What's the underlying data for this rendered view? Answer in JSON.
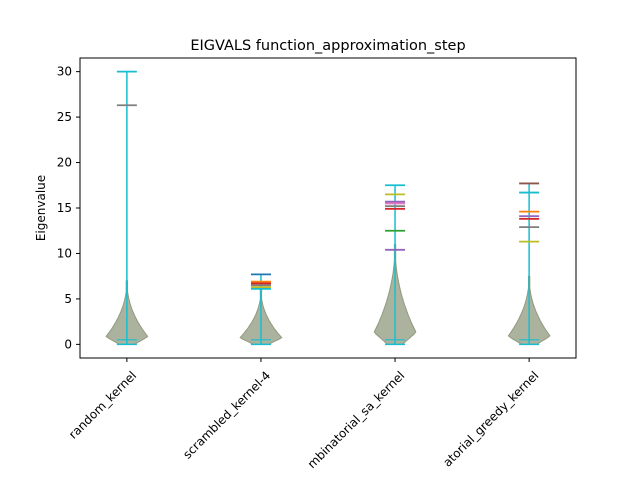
{
  "chart_data": {
    "type": "violin",
    "title": "EIGVALS function_approximation_step",
    "xlabel": "",
    "ylabel": "Eigenvalue",
    "ylim": [
      -1.5,
      31.5
    ],
    "yticks": [
      0,
      5,
      10,
      15,
      20,
      25,
      30
    ],
    "categories": [
      "random_kernel",
      "scrambled_kernel-4",
      "combinatorial_sa_kernel",
      "combinatorial_greedy_kernel"
    ],
    "x_tick_labels": [
      "random_kernel",
      "scrambled_kernel-4",
      "mbinatorial_sa_kernel",
      "atorial_greedy_kernel"
    ],
    "grid": false,
    "violins": [
      {
        "category": "random_kernel",
        "min": 0,
        "median": 0.5,
        "shape_max": 7,
        "maxima": [
          {
            "value": 26.3,
            "color": "#7f7f7f"
          },
          {
            "value": 30.0,
            "color": "#17becf"
          }
        ]
      },
      {
        "category": "scrambled_kernel-4",
        "min": 0,
        "median": 0.5,
        "shape_max": 6,
        "maxima": [
          {
            "value": 6.1,
            "color": "#17becf"
          },
          {
            "value": 6.3,
            "color": "#bcbd22"
          },
          {
            "value": 6.5,
            "color": "#7f7f7f"
          },
          {
            "value": 6.7,
            "color": "#d62728"
          },
          {
            "value": 6.9,
            "color": "#ff7f0e"
          },
          {
            "value": 7.7,
            "color": "#1f77b4"
          }
        ]
      },
      {
        "category": "combinatorial_sa_kernel",
        "min": 0,
        "median": 0.5,
        "shape_max": 11,
        "maxima": [
          {
            "value": 10.4,
            "color": "#9467bd"
          },
          {
            "value": 12.5,
            "color": "#2ca02c"
          },
          {
            "value": 14.9,
            "color": "#d62728"
          },
          {
            "value": 15.2,
            "color": "#7f7f7f"
          },
          {
            "value": 15.5,
            "color": "#e377c2"
          },
          {
            "value": 15.7,
            "color": "#9467bd"
          },
          {
            "value": 16.5,
            "color": "#bcbd22"
          },
          {
            "value": 17.5,
            "color": "#17becf"
          }
        ]
      },
      {
        "category": "combinatorial_greedy_kernel",
        "min": 0,
        "median": 0.5,
        "shape_max": 7.5,
        "maxima": [
          {
            "value": 11.3,
            "color": "#bcbd22"
          },
          {
            "value": 12.9,
            "color": "#7f7f7f"
          },
          {
            "value": 13.8,
            "color": "#d62728"
          },
          {
            "value": 14.1,
            "color": "#9467bd"
          },
          {
            "value": 14.6,
            "color": "#ff7f0e"
          },
          {
            "value": 16.7,
            "color": "#17becf"
          },
          {
            "value": 17.7,
            "color": "#8c564b"
          }
        ]
      }
    ],
    "colors": {
      "body_fill": "#8f9a7f",
      "stem": "#17becf",
      "axis": "#000000"
    }
  }
}
